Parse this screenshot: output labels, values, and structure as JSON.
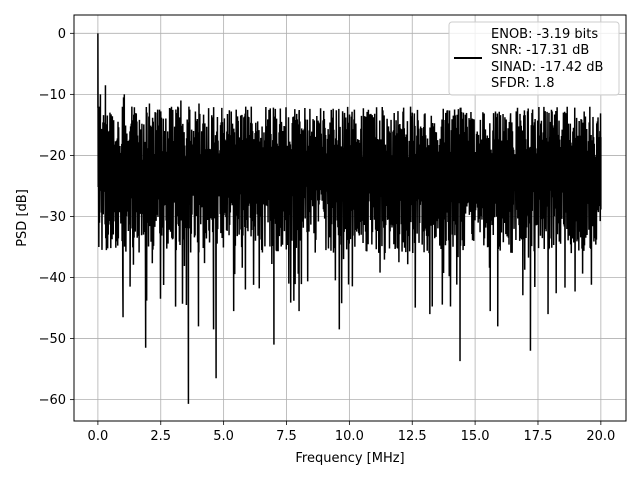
{
  "chart_data": {
    "type": "line",
    "title": "",
    "xlabel": "Frequency [MHz]",
    "ylabel": "PSD [dB]",
    "xlim": [
      -0.95,
      21.0
    ],
    "ylim": [
      -63.5,
      3.0
    ],
    "xticks": [
      0.0,
      2.5,
      5.0,
      7.5,
      10.0,
      12.5,
      15.0,
      17.5,
      20.0
    ],
    "xtick_labels": [
      "0.0",
      "2.5",
      "5.0",
      "7.5",
      "10.0",
      "12.5",
      "15.0",
      "17.5",
      "20.0"
    ],
    "yticks": [
      0,
      -10,
      -20,
      -30,
      -40,
      -50,
      -60
    ],
    "ytick_labels": [
      "0",
      "−10",
      "−20",
      "−30",
      "−40",
      "−50",
      "−60"
    ],
    "grid": true,
    "legend_position": "top-right",
    "series": [
      {
        "color": "#000000",
        "x_start": 0.0,
        "x_end": 20.0,
        "num_points": 1600,
        "mean_db": -22,
        "x": [
          0.0,
          0.05,
          0.1,
          0.3,
          0.48,
          0.55,
          1.0,
          1.02,
          1.05,
          1.28,
          1.9,
          2.05,
          2.3,
          2.45,
          2.5,
          3.3,
          3.52,
          3.6,
          3.62,
          4.0,
          4.02,
          4.6,
          4.7,
          5.4,
          5.5,
          6.1,
          7.0,
          7.3,
          8.0,
          8.0,
          9.6,
          9.8,
          10.2,
          11.5,
          12.5,
          13.2,
          13.85,
          14.4,
          14.5,
          15.6,
          15.9,
          16.4,
          17.2,
          17.9,
          18.0,
          20.0
        ],
        "y": [
          0.0,
          -12.0,
          -10.0,
          -8.5,
          -13.0,
          -25.0,
          -46.5,
          -10.5,
          -10.0,
          -41.5,
          -51.5,
          -11.5,
          -13.0,
          -12.5,
          -28.0,
          -11.0,
          -44.5,
          -60.7,
          -12.0,
          -48.0,
          -11.5,
          -48.5,
          -56.5,
          -45.5,
          -12.5,
          -12.0,
          -51.0,
          -14.5,
          -45.5,
          -13.0,
          -48.5,
          -14.5,
          -12.5,
          -14.0,
          -13.0,
          -46.0,
          -14.5,
          -53.7,
          -14.0,
          -45.5,
          -48.0,
          -14.5,
          -52.0,
          -46.0,
          -14.5,
          -17.0
        ]
      }
    ],
    "legend": {
      "entries": [
        "ENOB: -3.19 bits",
        "SNR: -17.31 dB",
        "SINAD: -17.42 dB",
        "SFDR: 1.8"
      ]
    }
  }
}
